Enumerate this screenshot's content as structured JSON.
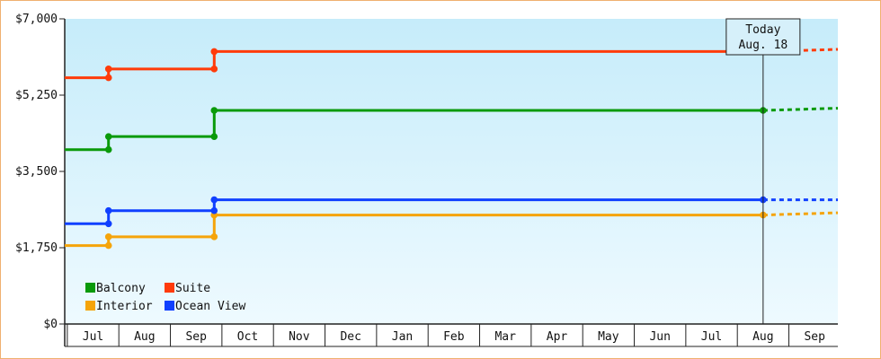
{
  "chart_data": {
    "type": "line",
    "step": true,
    "x_labels": [
      "Jul",
      "Aug",
      "Sep",
      "Oct",
      "Nov",
      "Dec",
      "Jan",
      "Feb",
      "Mar",
      "Apr",
      "May",
      "Jun",
      "Jul",
      "Aug",
      "Sep"
    ],
    "y_ticks": [
      "$0",
      "$1,750",
      "$3,500",
      "$5,250",
      "$7,000"
    ],
    "ylim": [
      0,
      7000
    ],
    "xlim": [
      -0.55,
      14.45
    ],
    "grid": false,
    "legend_position": "bottom-left",
    "today": {
      "label": "Today",
      "date": "Aug. 18",
      "x": 13
    },
    "series": [
      {
        "name": "Balcony",
        "color": "#0a9a0a",
        "points": [
          [
            -0.55,
            4000
          ],
          [
            0.3,
            4000
          ],
          [
            0.3,
            4300
          ],
          [
            2.35,
            4300
          ],
          [
            2.35,
            4900
          ],
          [
            13,
            4900
          ]
        ],
        "projection": [
          [
            13,
            4900
          ],
          [
            14.45,
            4950
          ]
        ]
      },
      {
        "name": "Suite",
        "color": "#ff3b0a",
        "points": [
          [
            -0.55,
            5650
          ],
          [
            0.3,
            5650
          ],
          [
            0.3,
            5850
          ],
          [
            2.35,
            5850
          ],
          [
            2.35,
            6250
          ],
          [
            13,
            6250
          ]
        ],
        "projection": [
          [
            13,
            6250
          ],
          [
            14.45,
            6300
          ]
        ]
      },
      {
        "name": "Interior",
        "color": "#f5a40a",
        "points": [
          [
            -0.55,
            1800
          ],
          [
            0.3,
            1800
          ],
          [
            0.3,
            2000
          ],
          [
            2.35,
            2000
          ],
          [
            2.35,
            2500
          ],
          [
            13,
            2500
          ]
        ],
        "projection": [
          [
            13,
            2500
          ],
          [
            14.45,
            2550
          ]
        ]
      },
      {
        "name": "Ocean View",
        "color": "#1040ff",
        "points": [
          [
            -0.55,
            2300
          ],
          [
            0.3,
            2300
          ],
          [
            0.3,
            2600
          ],
          [
            2.35,
            2600
          ],
          [
            2.35,
            2850
          ],
          [
            13,
            2850
          ]
        ],
        "projection": [
          [
            13,
            2850
          ],
          [
            14.45,
            2850
          ]
        ]
      }
    ]
  }
}
